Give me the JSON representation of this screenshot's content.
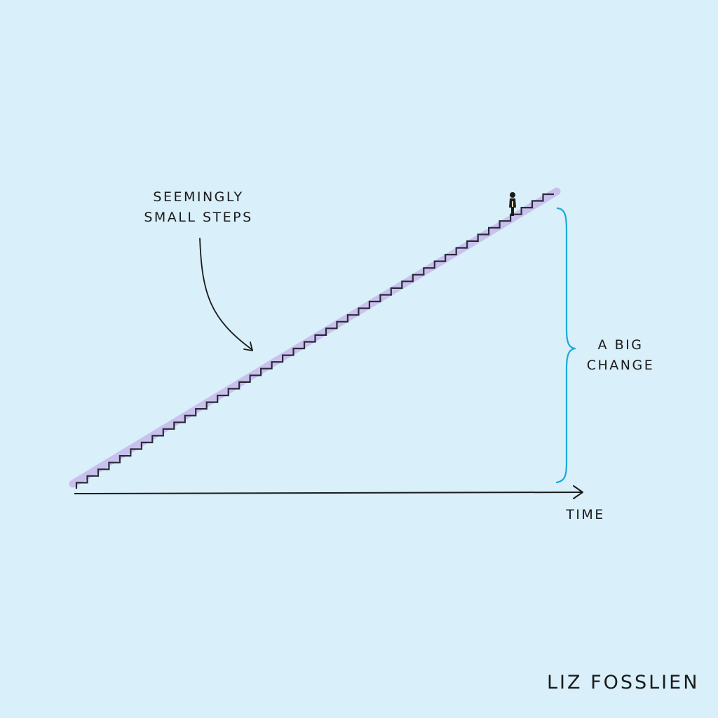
{
  "labels": {
    "steps_line1": "SEEMINGLY",
    "steps_line2": "SMALL STEPS",
    "change_line1": "A BIG",
    "change_line2": "CHANGE",
    "axis": "TIME"
  },
  "signature": "LIZ FOSSLIEN",
  "colors": {
    "background": "#d9eff9",
    "ink": "#1b1b1b",
    "stair_highlight": "#c7b9ec",
    "brace": "#1aa9d9"
  },
  "stairs": {
    "step_count": 44
  }
}
